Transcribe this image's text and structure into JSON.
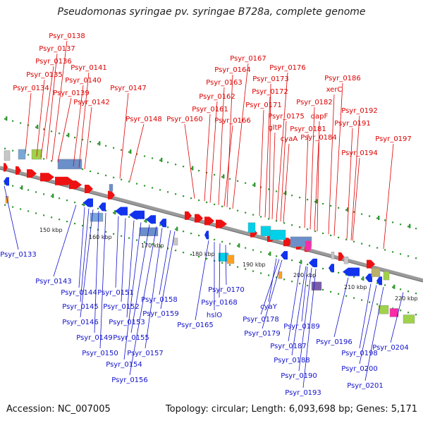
{
  "title": "Pseudomonas syringae pv. syringae B728a, complete genome",
  "footer": {
    "accession": "Accession: NC_007005",
    "topology": "Topology: circular; Length: 6,093,698 bp; Genes: 5,171"
  },
  "colors": {
    "forward_gene": "#ee1111",
    "reverse_gene": "#1133ee",
    "forward_label": "#dd0000",
    "reverse_label": "#1111cc",
    "backbone": "#9a9a9a",
    "tick": "#339933"
  },
  "scale_labels": [
    "150 kbp",
    "160 kbp",
    "170 kbp",
    "180 kbp",
    "190 kbp",
    "200 kbp",
    "210 kbp",
    "220 kbp"
  ],
  "forward_labels": [
    "Psyr_0138",
    "Psyr_0137",
    "Psyr_0136",
    "Psyr_0135",
    "Psyr_0134",
    "Psyr_0141",
    "Psyr_0140",
    "Psyr_0139",
    "Psyr_0142",
    "Psyr_0147",
    "Psyr_0148",
    "Psyr_0167",
    "Psyr_0164",
    "Psyr_0163",
    "Psyr_0162",
    "Psyr_0161",
    "Psyr_0160",
    "Psyr_0166",
    "Psyr_0176",
    "Psyr_0173",
    "Psyr_0172",
    "Psyr_0171",
    "Psyr_0175",
    "gltP",
    "cyaA",
    "Psyr_0186",
    "xerC",
    "Psyr_0182",
    "dapF",
    "Psyr_0181",
    "Psyr_0184",
    "Psyr_0192",
    "Psyr_0191",
    "Psyr_0194",
    "Psyr_0197"
  ],
  "reverse_labels": [
    "Psyr_0133",
    "Psyr_0143",
    "Psyr_0144",
    "Psyr_0145",
    "Psyr_0146",
    "Psyr_0149",
    "Psyr_0150",
    "Psyr_0151",
    "Psyr_0152",
    "Psyr_0153",
    "Psyr_0154",
    "Psyr_0155",
    "Psyr_0156",
    "Psyr_0157",
    "Psyr_0158",
    "Psyr_0159",
    "Psyr_0165",
    "Psyr_0170",
    "Psyr_0168",
    "hslO",
    "cyaY",
    "Psyr_0178",
    "Psyr_0179",
    "Psyr_0189",
    "Psyr_0187",
    "Psyr_0188",
    "Psyr_0190",
    "Psyr_0193",
    "Psyr_0196",
    "Psyr_0198",
    "Psyr_0200",
    "Psyr_0201",
    "Psyr_0204"
  ]
}
